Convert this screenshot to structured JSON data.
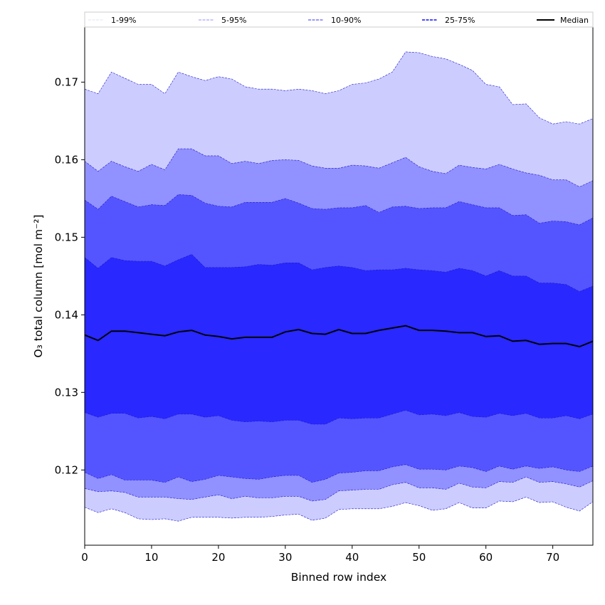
{
  "chart_data": {
    "type": "area",
    "title": "",
    "xlabel": "Binned row index",
    "ylabel": "O₃ total column [mol m⁻²]",
    "xlim": [
      0,
      76
    ],
    "ylim": [
      0.1103,
      0.1771
    ],
    "xticks": [
      "0",
      "10",
      "20",
      "30",
      "40",
      "50",
      "60",
      "70"
    ],
    "yticks": [
      "0.12",
      "0.13",
      "0.14",
      "0.15",
      "0.16",
      "0.17"
    ],
    "grid": false,
    "legend_position": "top, above plot",
    "x": [
      0,
      2,
      4,
      6,
      8,
      10,
      12,
      14,
      16,
      18,
      20,
      22,
      24,
      26,
      28,
      30,
      32,
      34,
      36,
      38,
      40,
      42,
      44,
      46,
      48,
      50,
      52,
      54,
      56,
      58,
      60,
      62,
      64,
      66,
      68,
      70,
      72,
      74,
      76
    ],
    "percentiles": {
      "p1": [
        0.1152,
        0.1145,
        0.115,
        0.1145,
        0.1137,
        0.1136,
        0.1137,
        0.1134,
        0.1139,
        0.1139,
        0.1139,
        0.1138,
        0.1139,
        0.1139,
        0.114,
        0.1142,
        0.1143,
        0.1135,
        0.1138,
        0.1149,
        0.115,
        0.115,
        0.115,
        0.1153,
        0.1158,
        0.1154,
        0.1148,
        0.115,
        0.1158,
        0.1151,
        0.1151,
        0.116,
        0.1159,
        0.1165,
        0.1158,
        0.1159,
        0.1152,
        0.1147,
        0.1159
      ],
      "p5": [
        0.1176,
        0.1172,
        0.1173,
        0.1171,
        0.1165,
        0.1165,
        0.1165,
        0.1163,
        0.1162,
        0.1165,
        0.1168,
        0.1163,
        0.1166,
        0.1164,
        0.1164,
        0.1166,
        0.1166,
        0.116,
        0.1162,
        0.1173,
        0.1174,
        0.1175,
        0.1175,
        0.1181,
        0.1184,
        0.1177,
        0.1177,
        0.1175,
        0.1183,
        0.1178,
        0.1177,
        0.1185,
        0.1184,
        0.1191,
        0.1184,
        0.1185,
        0.1182,
        0.1178,
        0.1186
      ],
      "p10": [
        0.1197,
        0.1189,
        0.1194,
        0.1187,
        0.1187,
        0.1187,
        0.1184,
        0.1191,
        0.1185,
        0.1188,
        0.1193,
        0.1191,
        0.1189,
        0.1188,
        0.1191,
        0.1193,
        0.1193,
        0.1184,
        0.1188,
        0.1196,
        0.1197,
        0.1199,
        0.1199,
        0.1204,
        0.1207,
        0.1201,
        0.1201,
        0.12,
        0.1205,
        0.1203,
        0.1198,
        0.1205,
        0.1201,
        0.1205,
        0.1202,
        0.1204,
        0.12,
        0.1198,
        0.1205
      ],
      "p25": [
        0.1274,
        0.1268,
        0.1273,
        0.1273,
        0.1267,
        0.1269,
        0.1266,
        0.1272,
        0.1272,
        0.1268,
        0.127,
        0.1264,
        0.1262,
        0.1263,
        0.1262,
        0.1264,
        0.1264,
        0.1259,
        0.1259,
        0.1267,
        0.1266,
        0.1267,
        0.1267,
        0.1272,
        0.1277,
        0.1271,
        0.1272,
        0.127,
        0.1274,
        0.1269,
        0.1268,
        0.1273,
        0.127,
        0.1273,
        0.1267,
        0.1267,
        0.127,
        0.1266,
        0.1272
      ],
      "median": [
        0.1374,
        0.1367,
        0.1379,
        0.1379,
        0.1377,
        0.1375,
        0.1373,
        0.1378,
        0.138,
        0.1374,
        0.1372,
        0.1369,
        0.1371,
        0.1371,
        0.1371,
        0.1378,
        0.1381,
        0.1376,
        0.1375,
        0.1381,
        0.1376,
        0.1376,
        0.138,
        0.1383,
        0.1386,
        0.138,
        0.138,
        0.1379,
        0.1377,
        0.1377,
        0.1372,
        0.1373,
        0.1366,
        0.1367,
        0.1362,
        0.1363,
        0.1363,
        0.1359,
        0.1366
      ],
      "p75": [
        0.1474,
        0.146,
        0.1474,
        0.147,
        0.1469,
        0.1469,
        0.1463,
        0.1471,
        0.1478,
        0.1461,
        0.1461,
        0.1461,
        0.1462,
        0.1465,
        0.1464,
        0.1467,
        0.1467,
        0.1458,
        0.1461,
        0.1463,
        0.1461,
        0.1457,
        0.1458,
        0.1458,
        0.146,
        0.1458,
        0.1457,
        0.1455,
        0.146,
        0.1457,
        0.145,
        0.1457,
        0.145,
        0.145,
        0.1441,
        0.1441,
        0.1439,
        0.143,
        0.1437
      ],
      "p90": [
        0.1548,
        0.1536,
        0.1553,
        0.1546,
        0.1539,
        0.1542,
        0.1541,
        0.1555,
        0.1554,
        0.1544,
        0.154,
        0.1539,
        0.1545,
        0.1545,
        0.1545,
        0.155,
        0.1544,
        0.1537,
        0.1536,
        0.1538,
        0.1538,
        0.1541,
        0.1532,
        0.1539,
        0.154,
        0.1537,
        0.1538,
        0.1538,
        0.1546,
        0.1542,
        0.1538,
        0.1538,
        0.1528,
        0.1529,
        0.1518,
        0.1521,
        0.152,
        0.1516,
        0.1525
      ],
      "p95": [
        0.1598,
        0.1585,
        0.1598,
        0.1591,
        0.1585,
        0.1594,
        0.1587,
        0.1614,
        0.1614,
        0.1605,
        0.1605,
        0.1595,
        0.1598,
        0.1595,
        0.1599,
        0.16,
        0.1599,
        0.1592,
        0.1589,
        0.1589,
        0.1593,
        0.1592,
        0.1589,
        0.1596,
        0.1603,
        0.1591,
        0.1585,
        0.1582,
        0.1593,
        0.159,
        0.1588,
        0.1594,
        0.1588,
        0.1583,
        0.158,
        0.1574,
        0.1574,
        0.1565,
        0.1573
      ],
      "p99": [
        0.1691,
        0.1685,
        0.1713,
        0.1705,
        0.1697,
        0.1697,
        0.1685,
        0.1713,
        0.1707,
        0.1702,
        0.1707,
        0.1704,
        0.1694,
        0.1691,
        0.1691,
        0.1689,
        0.1691,
        0.1689,
        0.1685,
        0.1689,
        0.1697,
        0.1699,
        0.1704,
        0.1713,
        0.1739,
        0.1738,
        0.1733,
        0.173,
        0.1723,
        0.1715,
        0.1697,
        0.1694,
        0.1671,
        0.1672,
        0.1654,
        0.1646,
        0.1649,
        0.1646,
        0.1653
      ]
    },
    "bands": [
      {
        "name": "1-99%",
        "lower": "p1",
        "upper": "p99",
        "color": "#ccccff",
        "line": "#d8d8ff"
      },
      {
        "name": "5-95%",
        "lower": "p5",
        "upper": "p95",
        "color": "#9191ff",
        "line": "#8c8cff"
      },
      {
        "name": "10-90%",
        "lower": "p10",
        "upper": "p90",
        "color": "#5555ff",
        "line": "#5a5aff"
      },
      {
        "name": "25-75%",
        "lower": "p25",
        "upper": "p75",
        "color": "#2828ff",
        "line": "#3030ff"
      }
    ],
    "median_series": {
      "name": "Median",
      "key": "median",
      "color": "#000000"
    }
  }
}
